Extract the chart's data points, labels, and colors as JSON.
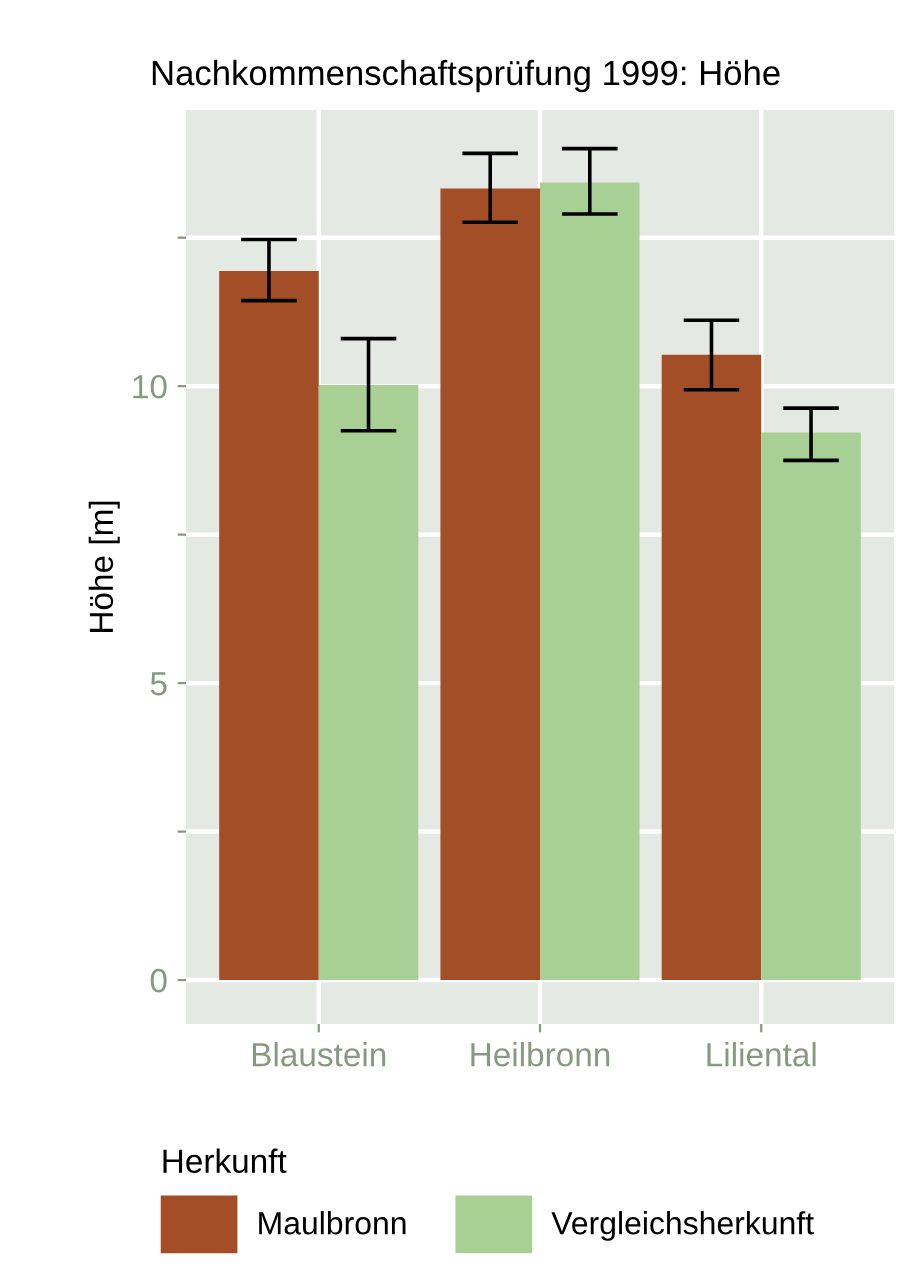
{
  "chart_data": {
    "type": "bar",
    "title": "Nachkommenschaftsprüfung 1999: Höhe",
    "ylabel": "Höhe [m]",
    "legend_title": "Herkunft",
    "categories": [
      "Blaustein",
      "Heilbronn",
      "Liliental"
    ],
    "series": [
      {
        "name": "Maulbronn",
        "color": "#a34e26",
        "values": [
          11.94,
          13.33,
          10.53
        ],
        "errors": [
          [
            11.44,
            12.47
          ],
          [
            12.76,
            13.92
          ],
          [
            9.94,
            11.11
          ]
        ]
      },
      {
        "name": "Vergleichsherkunft",
        "color": "#a8d095",
        "values": [
          10.02,
          13.43,
          9.22
        ],
        "errors": [
          [
            9.25,
            10.8
          ],
          [
            12.9,
            14.0
          ],
          [
            8.75,
            9.63
          ]
        ]
      }
    ],
    "ylim": [
      -0.74,
      14.65
    ],
    "yticks": [
      0,
      {
        "value": 2.5,
        "label": null
      },
      5,
      {
        "value": 7.5,
        "label": null
      },
      10,
      {
        "value": 12.5,
        "label": null
      }
    ],
    "grid": true,
    "legend": "bottom"
  }
}
